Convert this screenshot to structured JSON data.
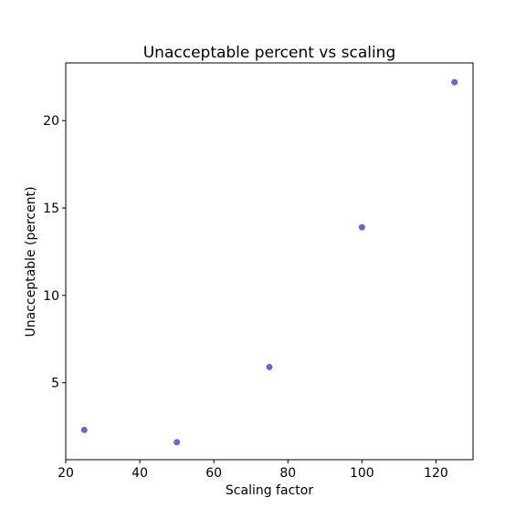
{
  "chart_data": {
    "type": "scatter",
    "title": "Unacceptable percent vs scaling",
    "xlabel": "Scaling factor",
    "ylabel": "Unacceptable (percent)",
    "xlim": [
      20,
      130
    ],
    "ylim": [
      0.6,
      23.3
    ],
    "xticks": [
      20,
      40,
      60,
      80,
      100,
      120
    ],
    "yticks": [
      5,
      10,
      15,
      20
    ],
    "grid": false,
    "series": [
      {
        "color": "#7060e0",
        "points": [
          {
            "x": 25,
            "y": 2.3
          },
          {
            "x": 50,
            "y": 1.6
          },
          {
            "x": 75,
            "y": 5.9
          },
          {
            "x": 100,
            "y": 13.9
          },
          {
            "x": 125,
            "y": 22.2
          }
        ]
      }
    ]
  }
}
